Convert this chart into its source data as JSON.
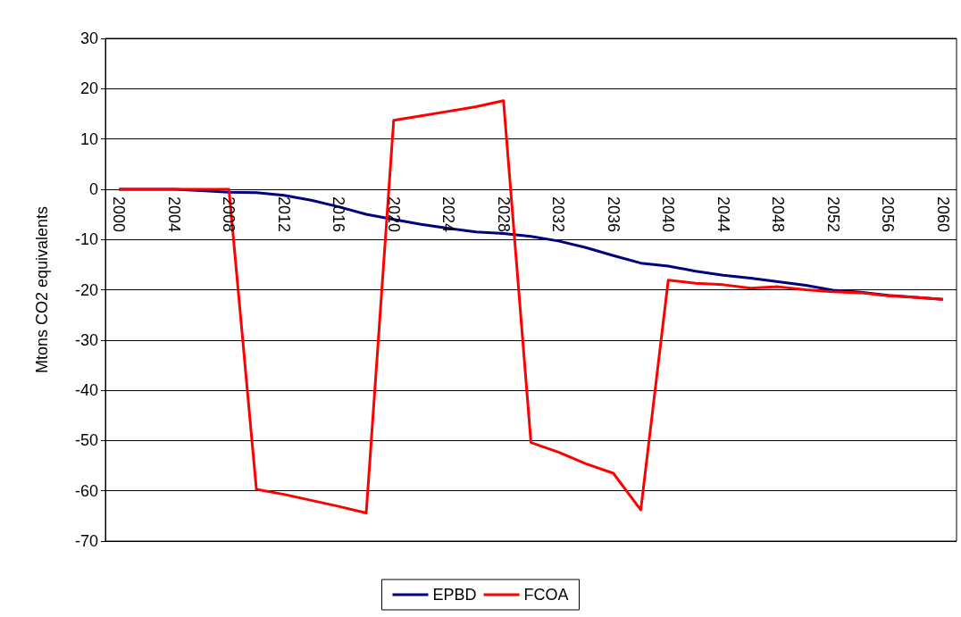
{
  "chart_data": {
    "type": "line",
    "ylabel": "Mtons CO2 equivalents",
    "categories": [
      "2000",
      null,
      "2004",
      null,
      "2008",
      null,
      "2012",
      null,
      "2016",
      null,
      "2020",
      null,
      "2024",
      null,
      "2028",
      null,
      "2032",
      null,
      "2036",
      null,
      "2040",
      null,
      "2044",
      null,
      "2048",
      null,
      "2052",
      null,
      "2056",
      null,
      "2060"
    ],
    "series": [
      {
        "name": "EPBD",
        "color": "#000080",
        "values": [
          0,
          0,
          0,
          -0.3,
          -0.6,
          -0.7,
          -1.2,
          -2.2,
          -3.5,
          -5.0,
          -6.0,
          -7.0,
          -7.8,
          -8.5,
          -8.8,
          -9.4,
          -10.3,
          -11.6,
          -13.2,
          -14.7,
          -15.3,
          -16.3,
          -17.1,
          -17.7,
          -18.4,
          -19.1,
          -20.1,
          -20.5,
          -21.1,
          -21.5,
          -21.9
        ]
      },
      {
        "name": "FCOA",
        "color": "#ff0000",
        "values": [
          0,
          0,
          0,
          0,
          0,
          -59.7,
          -60.7,
          -61.9,
          -63.1,
          -64.4,
          13.7,
          14.6,
          15.5,
          16.4,
          17.6,
          -50.4,
          -52.3,
          -54.6,
          -56.5,
          -63.8,
          -18.1,
          -18.7,
          -19.0,
          -19.7,
          -19.4,
          -20.0,
          -20.4,
          -20.6,
          -21.2,
          -21.5,
          -21.9
        ]
      }
    ],
    "ylim": [
      -70,
      30
    ],
    "yticks": [
      -70,
      -60,
      -50,
      -40,
      -30,
      -20,
      -10,
      0,
      10,
      20,
      30
    ],
    "grid": "y",
    "legend": "bottom",
    "marker": "none",
    "line_style": "solid"
  }
}
